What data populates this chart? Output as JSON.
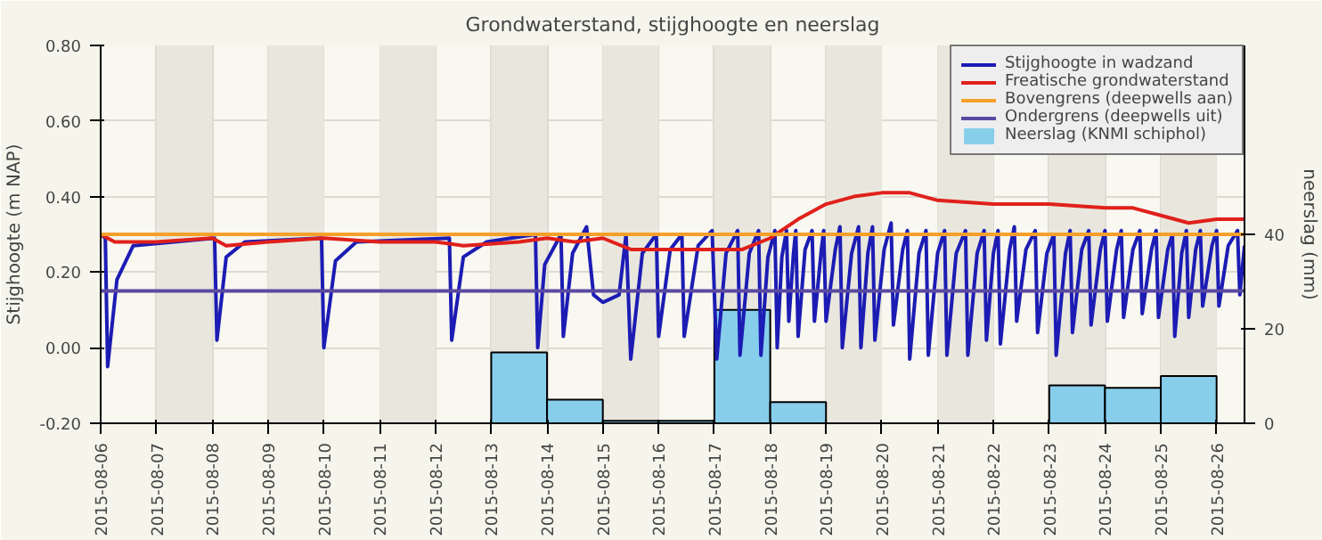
{
  "chart_data": {
    "type": "line",
    "title": "Grondwaterstand, stijghoogte en neerslag",
    "ylabel": "Stijghoogte (m NAP)",
    "y2label": "neerslag (mm)",
    "xlim": [
      "2015-08-06T00:00",
      "2015-08-26T12:00"
    ],
    "xticks": [
      "2015-08-06",
      "2015-08-07",
      "2015-08-08",
      "2015-08-09",
      "2015-08-10",
      "2015-08-11",
      "2015-08-12",
      "2015-08-13",
      "2015-08-14",
      "2015-08-15",
      "2015-08-16",
      "2015-08-17",
      "2015-08-18",
      "2015-08-19",
      "2015-08-20",
      "2015-08-21",
      "2015-08-22",
      "2015-08-23",
      "2015-08-24",
      "2015-08-25",
      "2015-08-26"
    ],
    "ylim": [
      -0.2,
      0.8
    ],
    "yticks": [
      {
        "value": -0.2,
        "label": "-0.20"
      },
      {
        "value": 0,
        "label": "0.00"
      },
      {
        "value": 0.2,
        "label": "0.20"
      },
      {
        "value": 0.4,
        "label": "0.40"
      },
      {
        "value": 0.6,
        "label": "0.60"
      },
      {
        "value": 0.8,
        "label": "0.80"
      }
    ],
    "y2lim": [
      0,
      80
    ],
    "y2ticks": [
      0,
      20,
      40
    ],
    "grid": true,
    "legend": "top right",
    "marker": "none",
    "line_style": "solid",
    "bands": [
      {
        "axis": "x",
        "from": "2015-08-07",
        "to": "2015-08-08",
        "color": "#e9e7dd"
      },
      {
        "axis": "x",
        "from": "2015-08-09",
        "to": "2015-08-10",
        "color": "#e9e7dd"
      },
      {
        "axis": "x",
        "from": "2015-08-11",
        "to": "2015-08-12",
        "color": "#e9e7dd"
      },
      {
        "axis": "x",
        "from": "2015-08-13",
        "to": "2015-08-14",
        "color": "#e9e7dd"
      },
      {
        "axis": "x",
        "from": "2015-08-15",
        "to": "2015-08-16",
        "color": "#e9e7dd"
      },
      {
        "axis": "x",
        "from": "2015-08-17",
        "to": "2015-08-18",
        "color": "#e9e7dd"
      },
      {
        "axis": "x",
        "from": "2015-08-19",
        "to": "2015-08-20",
        "color": "#e9e7dd"
      },
      {
        "axis": "x",
        "from": "2015-08-21",
        "to": "2015-08-22",
        "color": "#e9e7dd"
      },
      {
        "axis": "x",
        "from": "2015-08-23",
        "to": "2015-08-24",
        "color": "#e9e7dd"
      },
      {
        "axis": "x",
        "from": "2015-08-25",
        "to": "2015-08-26",
        "color": "#e9e7dd"
      }
    ],
    "series": [
      {
        "name": "Neerslag (KNMI schiphol)",
        "type": "bar",
        "axis": "y2",
        "color": "#87ceeb",
        "x": [
          "2015-08-06T12:00",
          "2015-08-07T12:00",
          "2015-08-08T12:00",
          "2015-08-09T12:00",
          "2015-08-10T12:00",
          "2015-08-11T12:00",
          "2015-08-12T12:00",
          "2015-08-13T12:00",
          "2015-08-14T12:00",
          "2015-08-15T12:00",
          "2015-08-16T12:00",
          "2015-08-17T12:00",
          "2015-08-18T12:00",
          "2015-08-19T12:00",
          "2015-08-20T12:00",
          "2015-08-21T12:00",
          "2015-08-22T12:00",
          "2015-08-23T12:00",
          "2015-08-24T12:00",
          "2015-08-25T12:00"
        ],
        "values": [
          0,
          0,
          0,
          0,
          0,
          0,
          0,
          15,
          5,
          0.5,
          0.5,
          24,
          4.5,
          0,
          0,
          0,
          0,
          8,
          7.5,
          10
        ]
      },
      {
        "name": "Stijghoogte in wadzand",
        "color": "#1c1cb4",
        "x": [
          "2015-08-06T00:00",
          "2015-08-06T02:00",
          "2015-08-06T03:00",
          "2015-08-06T07:00",
          "2015-08-06T14:00",
          "2015-08-08T01:00",
          "2015-08-08T02:00",
          "2015-08-08T06:00",
          "2015-08-08T14:00",
          "2015-08-09T23:00",
          "2015-08-10T00:00",
          "2015-08-10T05:00",
          "2015-08-10T14:00",
          "2015-08-12T06:00",
          "2015-08-12T07:00",
          "2015-08-12T12:00",
          "2015-08-12T22:00",
          "2015-08-13T19:00",
          "2015-08-13T20:00",
          "2015-08-13T23:00",
          "2015-08-14T06:00",
          "2015-08-14T07:00",
          "2015-08-14T11:00",
          "2015-08-14T17:00",
          "2015-08-14T20:00",
          "2015-08-15T00:00",
          "2015-08-15T07:00",
          "2015-08-15T10:00",
          "2015-08-15T12:00",
          "2015-08-15T17:00",
          "2015-08-15T23:00",
          "2015-08-16T00:00",
          "2015-08-16T05:00",
          "2015-08-16T10:00",
          "2015-08-16T11:00",
          "2015-08-16T17:00",
          "2015-08-16T23:00",
          "2015-08-17T01:00",
          "2015-08-17T05:00",
          "2015-08-17T10:00",
          "2015-08-17T11:00",
          "2015-08-17T15:00",
          "2015-08-17T19:00",
          "2015-08-17T20:00",
          "2015-08-17T23:00",
          "2015-08-18T02:00",
          "2015-08-18T03:00",
          "2015-08-18T05:00",
          "2015-08-18T07:00",
          "2015-08-18T08:00",
          "2015-08-18T10:00",
          "2015-08-18T11:00",
          "2015-08-18T12:00",
          "2015-08-18T15:00",
          "2015-08-18T18:00",
          "2015-08-18T19:00",
          "2015-08-18T22:00",
          "2015-08-18T23:00",
          "2015-08-19T00:00",
          "2015-08-19T04:00",
          "2015-08-19T06:00",
          "2015-08-19T07:00",
          "2015-08-19T11:00",
          "2015-08-19T14:00",
          "2015-08-19T15:00",
          "2015-08-19T18:00",
          "2015-08-19T20:00",
          "2015-08-19T21:00",
          "2015-08-20T01:00",
          "2015-08-20T04:00",
          "2015-08-20T05:00",
          "2015-08-20T09:00",
          "2015-08-20T11:00",
          "2015-08-20T12:00",
          "2015-08-20T16:00",
          "2015-08-20T19:00",
          "2015-08-20T20:00",
          "2015-08-21T00:00",
          "2015-08-21T03:00",
          "2015-08-21T04:00",
          "2015-08-21T08:00",
          "2015-08-21T12:00",
          "2015-08-21T13:00",
          "2015-08-21T17:00",
          "2015-08-21T20:00",
          "2015-08-21T21:00",
          "2015-08-22T00:00",
          "2015-08-22T02:00",
          "2015-08-22T03:00",
          "2015-08-22T07:00",
          "2015-08-22T09:00",
          "2015-08-22T10:00",
          "2015-08-22T14:00",
          "2015-08-22T18:00",
          "2015-08-22T19:00",
          "2015-08-22T23:00",
          "2015-08-23T02:00",
          "2015-08-23T03:00",
          "2015-08-23T07:00",
          "2015-08-23T09:00",
          "2015-08-23T10:00",
          "2015-08-23T14:00",
          "2015-08-23T17:00",
          "2015-08-23T18:00",
          "2015-08-23T22:00",
          "2015-08-24T00:00",
          "2015-08-24T01:00",
          "2015-08-24T05:00",
          "2015-08-24T07:00",
          "2015-08-24T08:00",
          "2015-08-24T12:00",
          "2015-08-24T15:00",
          "2015-08-24T16:00",
          "2015-08-24T20:00",
          "2015-08-24T22:00",
          "2015-08-24T23:00",
          "2015-08-25T03:00",
          "2015-08-25T05:00",
          "2015-08-25T06:00",
          "2015-08-25T09:00",
          "2015-08-25T11:00",
          "2015-08-25T12:00",
          "2015-08-25T15:00",
          "2015-08-25T17:00",
          "2015-08-25T18:00",
          "2015-08-25T22:00",
          "2015-08-26T00:00",
          "2015-08-26T01:00",
          "2015-08-26T05:00",
          "2015-08-26T09:00",
          "2015-08-26T10:00",
          "2015-08-26T12:00"
        ],
        "values": [
          0.3,
          0.29,
          -0.05,
          0.18,
          0.27,
          0.29,
          0.02,
          0.24,
          0.28,
          0.29,
          0.0,
          0.23,
          0.28,
          0.29,
          0.02,
          0.24,
          0.28,
          0.3,
          0.0,
          0.22,
          0.3,
          0.03,
          0.25,
          0.32,
          0.14,
          0.12,
          0.14,
          0.3,
          -0.03,
          0.25,
          0.3,
          0.03,
          0.26,
          0.3,
          0.03,
          0.27,
          0.31,
          -0.03,
          0.25,
          0.31,
          -0.02,
          0.25,
          0.31,
          -0.02,
          0.24,
          0.31,
          0.0,
          0.24,
          0.31,
          0.07,
          0.25,
          0.31,
          0.03,
          0.26,
          0.31,
          0.07,
          0.26,
          0.31,
          0.07,
          0.26,
          0.32,
          0.0,
          0.25,
          0.32,
          0.0,
          0.25,
          0.32,
          0.02,
          0.26,
          0.33,
          0.06,
          0.26,
          0.31,
          -0.03,
          0.25,
          0.31,
          -0.02,
          0.25,
          0.31,
          -0.02,
          0.25,
          0.31,
          -0.02,
          0.25,
          0.31,
          0.02,
          0.25,
          0.31,
          0.01,
          0.26,
          0.32,
          0.07,
          0.26,
          0.31,
          0.04,
          0.25,
          0.3,
          -0.02,
          0.25,
          0.31,
          0.04,
          0.26,
          0.31,
          0.06,
          0.26,
          0.31,
          0.07,
          0.26,
          0.31,
          0.08,
          0.26,
          0.31,
          0.09,
          0.26,
          0.31,
          0.08,
          0.26,
          0.3,
          0.03,
          0.25,
          0.31,
          0.08,
          0.26,
          0.31,
          0.11,
          0.27,
          0.31,
          0.11,
          0.27,
          0.31,
          0.14,
          0.27
        ]
      },
      {
        "name": "Freatische grondwaterstand",
        "color": "#e0201b",
        "x": [
          "2015-08-06T00:00",
          "2015-08-06T06:00",
          "2015-08-07T00:00",
          "2015-08-08T00:00",
          "2015-08-08T06:00",
          "2015-08-09T00:00",
          "2015-08-10T00:00",
          "2015-08-11T00:00",
          "2015-08-12T00:00",
          "2015-08-12T12:00",
          "2015-08-13T12:00",
          "2015-08-14T00:00",
          "2015-08-14T12:00",
          "2015-08-15T00:00",
          "2015-08-15T12:00",
          "2015-08-16T12:00",
          "2015-08-17T12:00",
          "2015-08-18T00:00",
          "2015-08-18T12:00",
          "2015-08-19T00:00",
          "2015-08-19T12:00",
          "2015-08-20T00:00",
          "2015-08-20T12:00",
          "2015-08-21T00:00",
          "2015-08-22T00:00",
          "2015-08-23T00:00",
          "2015-08-24T00:00",
          "2015-08-24T12:00",
          "2015-08-25T00:00",
          "2015-08-25T12:00",
          "2015-08-26T00:00",
          "2015-08-26T12:00"
        ],
        "values": [
          0.3,
          0.28,
          0.28,
          0.29,
          0.27,
          0.28,
          0.29,
          0.28,
          0.28,
          0.27,
          0.28,
          0.29,
          0.28,
          0.29,
          0.26,
          0.26,
          0.26,
          0.29,
          0.34,
          0.38,
          0.4,
          0.41,
          0.41,
          0.39,
          0.38,
          0.38,
          0.37,
          0.37,
          0.35,
          0.33,
          0.34,
          0.34
        ]
      },
      {
        "name": "Bovengrens (deepwells aan)",
        "color": "#f5a02a",
        "x": [
          "2015-08-06T00:00",
          "2015-08-26T12:00"
        ],
        "values": [
          0.3,
          0.3
        ]
      },
      {
        "name": "Ondergrens (deepwells uit)",
        "color": "#5a4aa0",
        "x": [
          "2015-08-06T00:00",
          "2015-08-26T12:00"
        ],
        "values": [
          0.15,
          0.15
        ]
      }
    ]
  }
}
